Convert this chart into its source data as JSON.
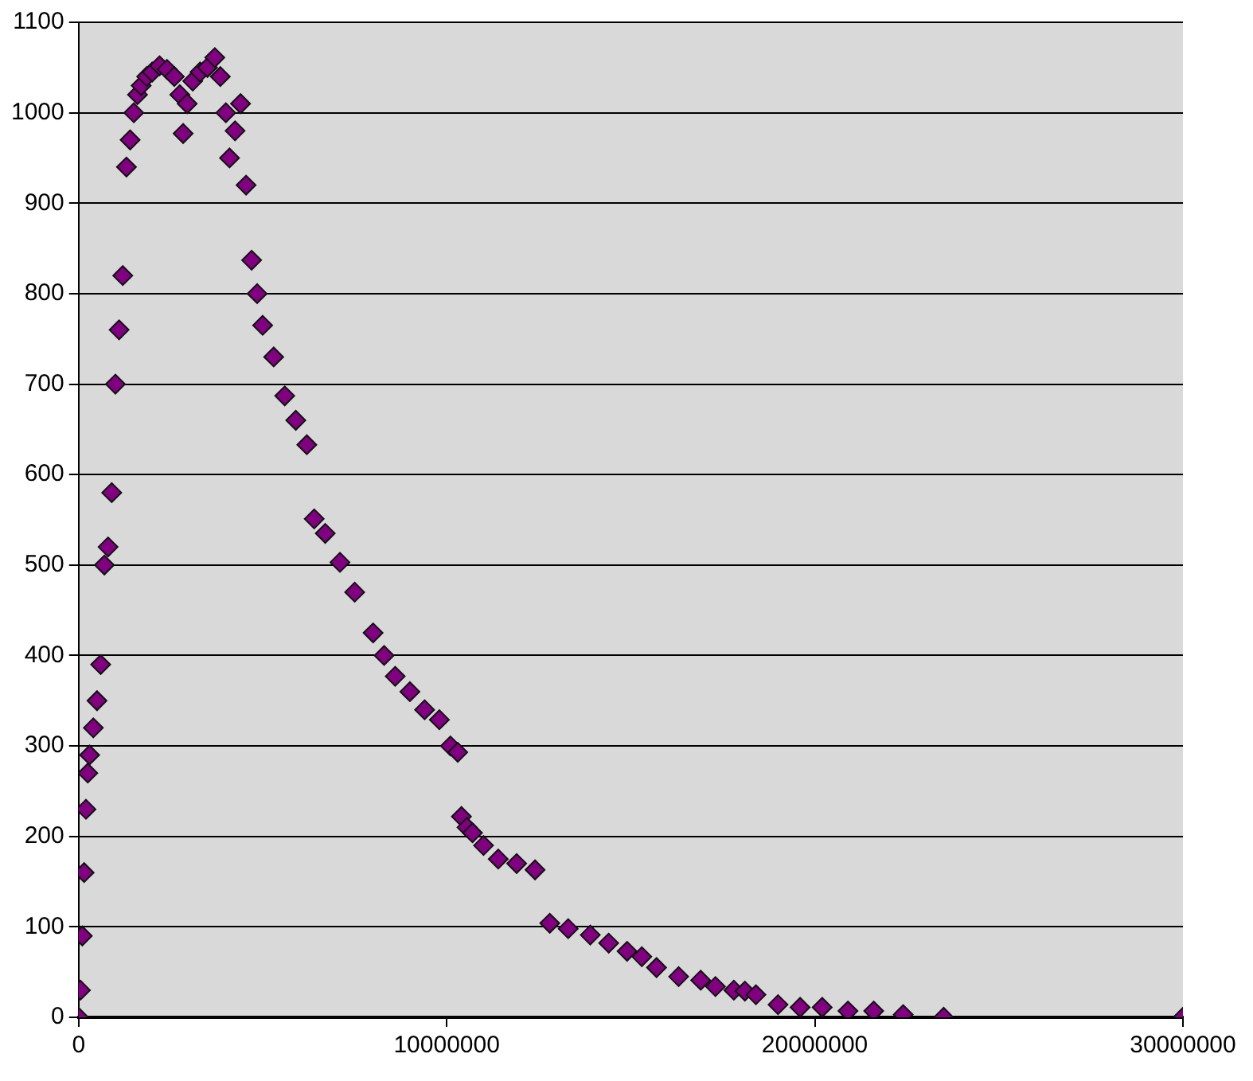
{
  "chart_data": {
    "type": "scatter",
    "marker": "diamond",
    "grid": "y",
    "legend": false,
    "xlim": [
      0,
      30000000
    ],
    "xticks": [
      0,
      10000000,
      20000000,
      30000000
    ],
    "ylim": [
      0,
      1100
    ],
    "yticks": [
      0,
      100,
      200,
      300,
      400,
      500,
      600,
      700,
      800,
      900,
      1000,
      1100
    ],
    "series": [
      {
        "color": "#800080",
        "x": [
          0,
          50000,
          100000,
          150000,
          200000,
          250000,
          300000,
          400000,
          500000,
          600000,
          700000,
          800000,
          900000,
          1000000,
          1100000,
          1200000,
          1300000,
          1400000,
          1500000,
          1600000,
          1700000,
          1850000,
          2000000,
          2200000,
          2400000,
          2600000,
          2750000,
          2840000,
          2950000,
          3100000,
          3300000,
          3500000,
          3700000,
          3850000,
          4000000,
          4100000,
          4250000,
          4400000,
          4550000,
          4700000,
          4850000,
          5000000,
          5300000,
          5600000,
          5900000,
          6200000,
          6400000,
          6700000,
          7100000,
          7500000,
          8000000,
          8300000,
          8600000,
          9000000,
          9400000,
          9800000,
          10100000,
          10300000,
          10400000,
          10550000,
          10700000,
          11000000,
          11400000,
          11900000,
          12400000,
          12800000,
          13300000,
          13900000,
          14400000,
          14900000,
          15300000,
          15700000,
          16300000,
          16900000,
          17300000,
          17800000,
          18100000,
          18400000,
          19000000,
          19600000,
          20200000,
          20900000,
          21600000,
          22400000,
          23500000,
          30000000
        ],
        "values": [
          0,
          30,
          90,
          160,
          230,
          270,
          290,
          320,
          350,
          390,
          500,
          520,
          580,
          700,
          760,
          820,
          940,
          970,
          1000,
          1020,
          1030,
          1040,
          1045,
          1052,
          1048,
          1040,
          1020,
          977,
          1010,
          1035,
          1045,
          1050,
          1061,
          1040,
          1000,
          950,
          980,
          1010,
          920,
          837,
          800,
          765,
          730,
          687,
          660,
          633,
          551,
          535,
          503,
          470,
          425,
          400,
          377,
          360,
          340,
          329,
          300,
          293,
          222,
          210,
          204,
          190,
          175,
          170,
          163,
          104,
          98,
          91,
          82,
          73,
          67,
          55,
          45,
          41,
          34,
          30,
          29,
          25,
          14,
          11,
          11,
          7,
          7,
          3,
          0,
          0
        ]
      }
    ]
  }
}
